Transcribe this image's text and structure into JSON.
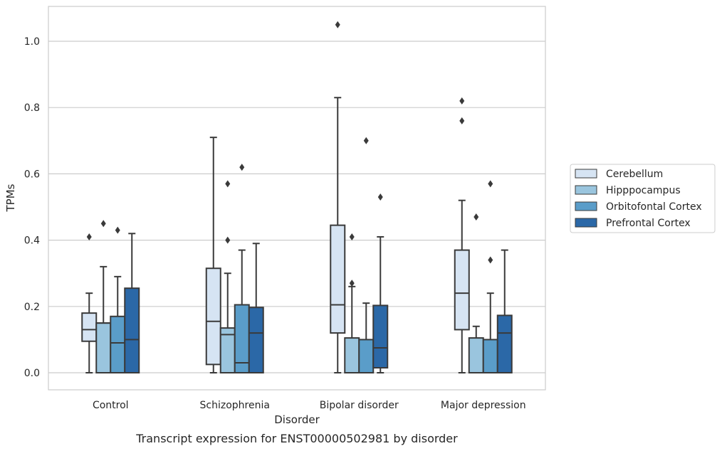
{
  "caption": "Transcript expression for ENST00000502981 by disorder",
  "chart_data": {
    "type": "box",
    "title": "",
    "xlabel": "Disorder",
    "ylabel": "TPMs",
    "ylim": [
      -0.05,
      1.1
    ],
    "yticks": [
      "0.0",
      "0.2",
      "0.4",
      "0.6",
      "0.8",
      "1.0"
    ],
    "grid": "horizontal",
    "legend_position": "right",
    "categories": [
      "Control",
      "Schizophrenia",
      "Bipolar disorder",
      "Major depression"
    ],
    "series": [
      {
        "name": "Cerebellum",
        "color": "#d6e4f3",
        "boxes": [
          {
            "whislo": 0.0,
            "q1": 0.095,
            "med": 0.13,
            "q3": 0.18,
            "whishi": 0.24,
            "fliers": [
              0.41
            ]
          },
          {
            "whislo": 0.0,
            "q1": 0.025,
            "med": 0.155,
            "q3": 0.315,
            "whishi": 0.71,
            "fliers": []
          },
          {
            "whislo": 0.0,
            "q1": 0.12,
            "med": 0.205,
            "q3": 0.445,
            "whishi": 0.83,
            "fliers": [
              1.05
            ]
          },
          {
            "whislo": 0.0,
            "q1": 0.13,
            "med": 0.24,
            "q3": 0.37,
            "whishi": 0.52,
            "fliers": [
              0.76,
              0.82
            ]
          }
        ]
      },
      {
        "name": "Hipppocampus",
        "color": "#9ac5de",
        "boxes": [
          {
            "whislo": 0.0,
            "q1": 0.0,
            "med": 0.15,
            "q3": 0.15,
            "whishi": 0.32,
            "fliers": [
              0.45
            ]
          },
          {
            "whislo": 0.0,
            "q1": 0.0,
            "med": 0.115,
            "q3": 0.135,
            "whishi": 0.3,
            "fliers": [
              0.4,
              0.57
            ]
          },
          {
            "whislo": 0.0,
            "q1": 0.0,
            "med": 0.0,
            "q3": 0.105,
            "whishi": 0.26,
            "fliers": [
              0.27,
              0.41
            ]
          },
          {
            "whislo": 0.0,
            "q1": 0.0,
            "med": 0.0,
            "q3": 0.105,
            "whishi": 0.14,
            "fliers": [
              0.47
            ]
          }
        ]
      },
      {
        "name": "Orbitofontal Cortex",
        "color": "#5a9dc9",
        "boxes": [
          {
            "whislo": 0.0,
            "q1": 0.0,
            "med": 0.09,
            "q3": 0.17,
            "whishi": 0.29,
            "fliers": [
              0.43
            ]
          },
          {
            "whislo": 0.0,
            "q1": 0.0,
            "med": 0.03,
            "q3": 0.205,
            "whishi": 0.37,
            "fliers": [
              0.62
            ]
          },
          {
            "whislo": 0.0,
            "q1": 0.0,
            "med": 0.0,
            "q3": 0.1,
            "whishi": 0.21,
            "fliers": [
              0.7
            ]
          },
          {
            "whislo": 0.0,
            "q1": 0.0,
            "med": 0.0,
            "q3": 0.1,
            "whishi": 0.24,
            "fliers": [
              0.34,
              0.57
            ]
          }
        ]
      },
      {
        "name": "Prefrontal Cortex",
        "color": "#2b68a7",
        "boxes": [
          {
            "whislo": 0.0,
            "q1": 0.0,
            "med": 0.1,
            "q3": 0.255,
            "whishi": 0.42,
            "fliers": []
          },
          {
            "whislo": 0.0,
            "q1": 0.0,
            "med": 0.12,
            "q3": 0.197,
            "whishi": 0.39,
            "fliers": []
          },
          {
            "whislo": 0.0,
            "q1": 0.015,
            "med": 0.075,
            "q3": 0.203,
            "whishi": 0.41,
            "fliers": [
              0.53
            ]
          },
          {
            "whislo": 0.0,
            "q1": 0.0,
            "med": 0.12,
            "q3": 0.173,
            "whishi": 0.37,
            "fliers": []
          }
        ]
      }
    ]
  }
}
